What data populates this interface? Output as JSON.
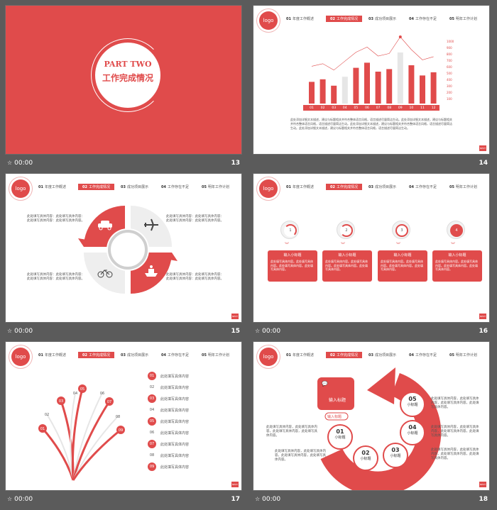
{
  "footer_time": "00:00",
  "slides": {
    "s13": {
      "number": "13",
      "part": "PART TWO",
      "title": "工作完成情况"
    },
    "s14": {
      "number": "14",
      "nav": [
        "01 年度工作概述",
        "02 工作完成情况",
        "03 成功项目展示",
        "04 工作存在不足",
        "05 明年工作计划"
      ],
      "logo": "logo",
      "chart_data": {
        "type": "bar",
        "categories": [
          "01",
          "02",
          "03",
          "04",
          "05",
          "06",
          "07",
          "08",
          "09",
          "10",
          "11",
          "12"
        ],
        "series": [
          {
            "values": [
              340,
              380,
              280,
              420,
              560,
              640,
              500,
              540,
              800,
              600,
              440,
              490
            ]
          }
        ],
        "yticks": [
          "1000",
          "900",
          "800",
          "700",
          "600",
          "500",
          "400",
          "300",
          "200",
          "100"
        ],
        "ylim": [
          0,
          1000
        ]
      },
      "body_text": "此处添加详细文本描述，建议与标题相关并符合整体语言风格，语言描述尽量简洁生动。此处添加详细文本描述，建议与标题相关并符合整体语言风格，语言描述尽量简洁生动。此处添加详细文本描述，建议与标题相关并符合整体语言风格，语言描述尽量简洁生动。此处添加详细文本描述，建议与标题相关并符合整体语言风格，语言描述尽量简洁生动。"
    },
    "s15": {
      "number": "15",
      "text_blocks": [
        "此处填写具体内容：此处填写具体内容：此处填写具体内容：此处填写具体内容。",
        "此处填写具体内容：此处填写具体内容：此处填写具体内容：此处填写具体内容。",
        "此处填写具体内容：此处填写具体内容：此处填写具体内容：此处填写具体内容。",
        "此处填写具体内容：此处填写具体内容：此处填写具体内容：此处填写具体内容。"
      ],
      "icons": [
        "car-icon",
        "plane-icon",
        "bicycle-icon",
        "ship-icon"
      ]
    },
    "s16": {
      "number": "16",
      "steps": [
        {
          "n": "1",
          "title": "输入小标题",
          "text": "此处填写具体内容。此处填写具体内容。此处填写具体内容。此处填写具体内容。"
        },
        {
          "n": "2",
          "title": "输入小标题",
          "text": "此处填写具体内容。此处填写具体内容。此处填写具体内容。此处填写具体内容。"
        },
        {
          "n": "3",
          "title": "输入小标题",
          "text": "此处填写具体内容。此处填写具体内容。此处填写具体内容。此处填写具体内容。"
        },
        {
          "n": "4",
          "title": "输入小标题",
          "text": "此处填写具体内容。此处填写具体内容。此处填写具体内容。此处填写具体内容。"
        }
      ]
    },
    "s17": {
      "number": "17",
      "fan_labels": [
        "01",
        "02",
        "03",
        "04",
        "05",
        "06",
        "07",
        "08",
        "09"
      ],
      "list": [
        {
          "n": "01",
          "text": "此处填写具体内容"
        },
        {
          "n": "02",
          "text": "此处填写具体内容"
        },
        {
          "n": "03",
          "text": "此处填写具体内容"
        },
        {
          "n": "04",
          "text": "此处填写具体内容"
        },
        {
          "n": "05",
          "text": "此处填写具体内容"
        },
        {
          "n": "06",
          "text": "此处填写具体内容"
        },
        {
          "n": "07",
          "text": "此处填写具体内容"
        },
        {
          "n": "08",
          "text": "此处填写具体内容"
        },
        {
          "n": "09",
          "text": "此处填写具体内容"
        }
      ]
    },
    "s18": {
      "number": "18",
      "main_label": "输入标题",
      "sub_label": "输入标题",
      "circles": [
        {
          "n": "01",
          "label": "小标题"
        },
        {
          "n": "02",
          "label": "小标题"
        },
        {
          "n": "03",
          "label": "小标题"
        },
        {
          "n": "04",
          "label": "小标题"
        },
        {
          "n": "05",
          "label": "小标题"
        }
      ],
      "side_text": "此处填写具体内容，此处填写具体内容，此处填写具体内容，此处填写具体内容。"
    }
  }
}
